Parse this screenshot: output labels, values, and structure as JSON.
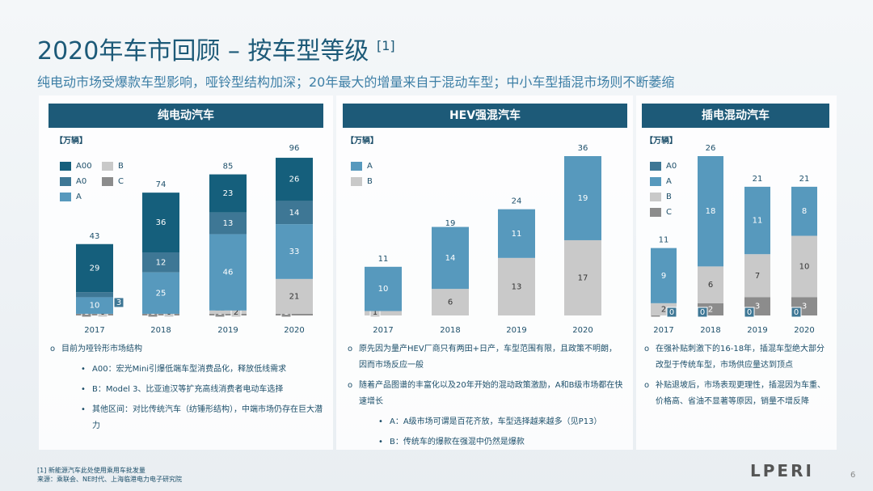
{
  "header": {
    "title": "2020年车市回顾 – 按车型等级",
    "title_note": "[1]",
    "subtitle": "纯电动市场受爆款车型影响，哑铃型结构加深；20年最大的增量来自于混动车型；中小车型插混市场则不断萎缩"
  },
  "chart_data": [
    {
      "type": "stacked-bar",
      "title": "纯电动汽车",
      "unit_label": "【万辆】",
      "categories": [
        "2017",
        "2018",
        "2019",
        "2020"
      ],
      "series": [
        {
          "name": "C",
          "color": "#8c8c8c",
          "values": [
            1,
            1,
            1,
            1
          ]
        },
        {
          "name": "B",
          "color": "#c9c9c9",
          "values": [
            0,
            0,
            2,
            21
          ]
        },
        {
          "name": "A",
          "color": "#5799bd",
          "values": [
            10,
            25,
            46,
            33
          ]
        },
        {
          "name": "A0",
          "color": "#3e7795",
          "values": [
            3,
            12,
            13,
            14
          ]
        },
        {
          "name": "A00",
          "color": "#155f7c",
          "values": [
            29,
            36,
            23,
            26
          ]
        }
      ],
      "totals": [
        43,
        74,
        85,
        96
      ]
    },
    {
      "type": "stacked-bar",
      "title": "HEV强混汽车",
      "unit_label": "【万辆】",
      "categories": [
        "2017",
        "2018",
        "2019",
        "2020"
      ],
      "series": [
        {
          "name": "B",
          "color": "#c9c9c9",
          "values": [
            1,
            6,
            13,
            17
          ]
        },
        {
          "name": "A",
          "color": "#5799bd",
          "values": [
            10,
            14,
            11,
            19
          ]
        }
      ],
      "totals": [
        11,
        19,
        24,
        36
      ]
    },
    {
      "type": "stacked-bar",
      "title": "插电混动汽车",
      "unit_label": "【万辆】",
      "categories": [
        "2017",
        "2018",
        "2019",
        "2020"
      ],
      "series": [
        {
          "name": "C",
          "color": "#8c8c8c",
          "values": [
            0,
            2,
            3,
            3
          ]
        },
        {
          "name": "B",
          "color": "#c9c9c9",
          "values": [
            2,
            6,
            7,
            10
          ]
        },
        {
          "name": "A",
          "color": "#5799bd",
          "values": [
            9,
            18,
            11,
            8
          ]
        },
        {
          "name": "A0",
          "color": "#3e7795",
          "values": [
            0,
            0,
            0,
            0
          ]
        }
      ],
      "totals": [
        11,
        26,
        21,
        21
      ]
    }
  ],
  "notes": [
    [
      {
        "text": "目前为哑铃形市场结构",
        "level": 1
      },
      {
        "text": "A00：宏光Mini引爆低端车型消费品化，释放低线需求",
        "level": 2
      },
      {
        "text": "B：Model 3、比亚迪汉等扩充高线消费者电动车选择",
        "level": 2
      },
      {
        "text": "其他区间：对比传统汽车（纺锤形结构），中端市场仍存在巨大潜力",
        "level": 2
      }
    ],
    [
      {
        "text": "原先因为量产HEV厂商只有两田+日产，车型范围有限，且政策不明朗，因而市场反应一般",
        "level": 1
      },
      {
        "text": "随着产品图谱的丰富化以及20年开始的混动政策激励，A和B级市场都在快速增长",
        "level": 1
      },
      {
        "text": "A：A级市场可谓是百花齐放，车型选择越来越多（见P13）",
        "level": 2
      },
      {
        "text": "B：传统车的爆款在强混中仍然是爆款",
        "level": 2
      }
    ],
    [
      {
        "text": "在强补贴刺激下的16-18年，插混车型绝大部分改型于传统车型，市场供应量达到顶点",
        "level": 1
      },
      {
        "text": "补贴退坡后，市场表现更理性，插混因为车重、价格高、省油不显著等原因，销量不增反降",
        "level": 1
      }
    ]
  ],
  "footer": {
    "note": "[1] 新能源汽车此处使用乘用车批发量",
    "source": "来源：乘联会、NE时代、上海临港电力电子研究院",
    "logo": "LPERI",
    "page": "6"
  }
}
